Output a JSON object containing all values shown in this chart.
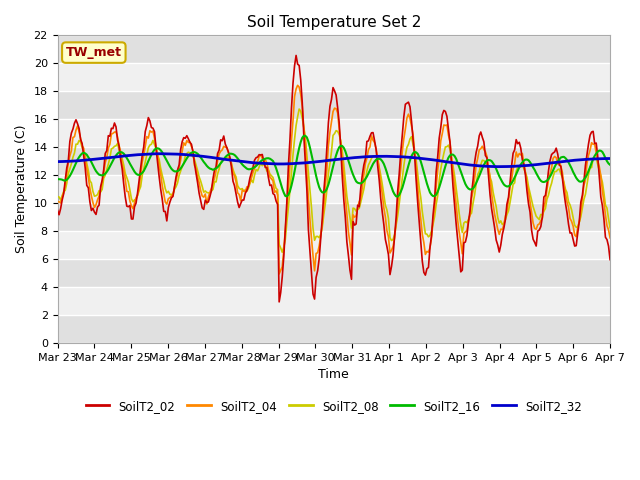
{
  "title": "Soil Temperature Set 2",
  "xlabel": "Time",
  "ylabel": "Soil Temperature (C)",
  "ylim": [
    0,
    22
  ],
  "yticks": [
    0,
    2,
    4,
    6,
    8,
    10,
    12,
    14,
    16,
    18,
    20,
    22
  ],
  "date_labels": [
    "Mar 23",
    "Mar 24",
    "Mar 25",
    "Mar 26",
    "Mar 27",
    "Mar 28",
    "Mar 29",
    "Mar 30",
    "Mar 31",
    "Apr 1",
    "Apr 2",
    "Apr 3",
    "Apr 4",
    "Apr 5",
    "Apr 6",
    "Apr 7"
  ],
  "series_names": [
    "SoilT2_02",
    "SoilT2_04",
    "SoilT2_08",
    "SoilT2_16",
    "SoilT2_32"
  ],
  "series_colors": [
    "#cc0000",
    "#ff8800",
    "#cccc00",
    "#00bb00",
    "#0000cc"
  ],
  "series_lw": [
    1.2,
    1.2,
    1.2,
    1.5,
    2.0
  ],
  "annotation_text": "TW_met",
  "annotation_color": "#990000",
  "annotation_bg": "#ffffcc",
  "annotation_border": "#ccaa00",
  "fig_bg": "#ffffff",
  "plot_bg_light": "#f0f0f0",
  "plot_bg_dark": "#e0e0e0",
  "grid_color": "#ffffff",
  "figsize": [
    6.4,
    4.8
  ],
  "dpi": 100,
  "title_fontsize": 11,
  "tick_fontsize": 8,
  "label_fontsize": 9
}
